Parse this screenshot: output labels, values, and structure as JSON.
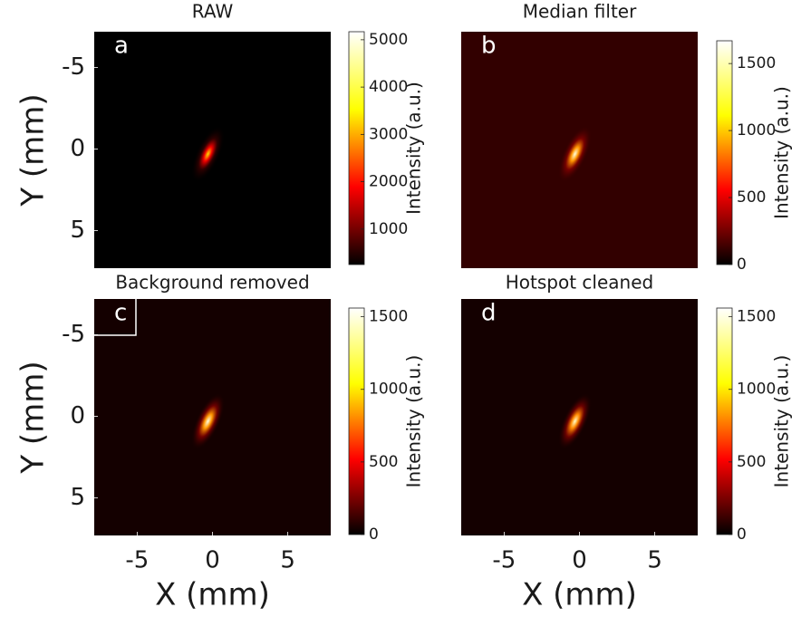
{
  "chart_data": [
    {
      "type": "heatmap",
      "title": "RAW",
      "panel_label": "a",
      "ylabel": "Y (mm)",
      "xlim": [
        -7.85,
        7.85
      ],
      "ylim": [
        -7.2,
        7.3
      ],
      "yticks": [
        -5,
        0,
        5
      ],
      "background": 150,
      "spot": {
        "x": -0.3,
        "y": 0.3,
        "value": 3300
      },
      "colormap": [
        "#000000",
        "#ff0000",
        "#ffff00",
        "#ffffff"
      ],
      "colorbar": {
        "label": "Intensity (a.u.)",
        "lim": [
          250,
          5170
        ],
        "ticks": [
          1000,
          2000,
          3000,
          4000,
          5000
        ]
      }
    },
    {
      "type": "heatmap",
      "title": "Median filter",
      "panel_label": "b",
      "xlim": [
        -7.85,
        7.85
      ],
      "ylim": [
        -7.2,
        7.3
      ],
      "background": 110,
      "spot": {
        "x": -0.3,
        "y": 0.3,
        "value": 1600
      },
      "colormap": [
        "#000000",
        "#ff0000",
        "#ffff00",
        "#ffffff"
      ],
      "colorbar": {
        "label": "Intensity (a.u.)",
        "lim": [
          0,
          1670
        ],
        "ticks": [
          0,
          500,
          1000,
          1500
        ]
      }
    },
    {
      "type": "heatmap",
      "title": "Background removed",
      "panel_label": "c",
      "panel_label_box": true,
      "xlabel": "X (mm)",
      "ylabel": "Y (mm)",
      "xlim": [
        -7.85,
        7.85
      ],
      "ylim": [
        -7.2,
        7.3
      ],
      "xticks": [
        -5,
        0,
        5
      ],
      "yticks": [
        -5,
        0,
        5
      ],
      "background": 40,
      "spot": {
        "x": -0.3,
        "y": 0.3,
        "value": 1500
      },
      "colormap": [
        "#000000",
        "#ff0000",
        "#ffff00",
        "#ffffff"
      ],
      "colorbar": {
        "label": "Intensity (a.u.)",
        "lim": [
          0,
          1560
        ],
        "ticks": [
          0,
          500,
          1000,
          1500
        ]
      }
    },
    {
      "type": "heatmap",
      "title": "Hotspot cleaned",
      "panel_label": "d",
      "xlabel": "X (mm)",
      "xlim": [
        -7.85,
        7.85
      ],
      "ylim": [
        -7.2,
        7.3
      ],
      "xticks": [
        -5,
        0,
        5
      ],
      "background": 40,
      "spot": {
        "x": -0.3,
        "y": 0.3,
        "value": 1450
      },
      "colormap": [
        "#000000",
        "#ff0000",
        "#ffff00",
        "#ffffff"
      ],
      "colorbar": {
        "label": "Intensity (a.u.)",
        "lim": [
          0,
          1560
        ],
        "ticks": [
          0,
          500,
          1000,
          1500
        ]
      }
    }
  ]
}
